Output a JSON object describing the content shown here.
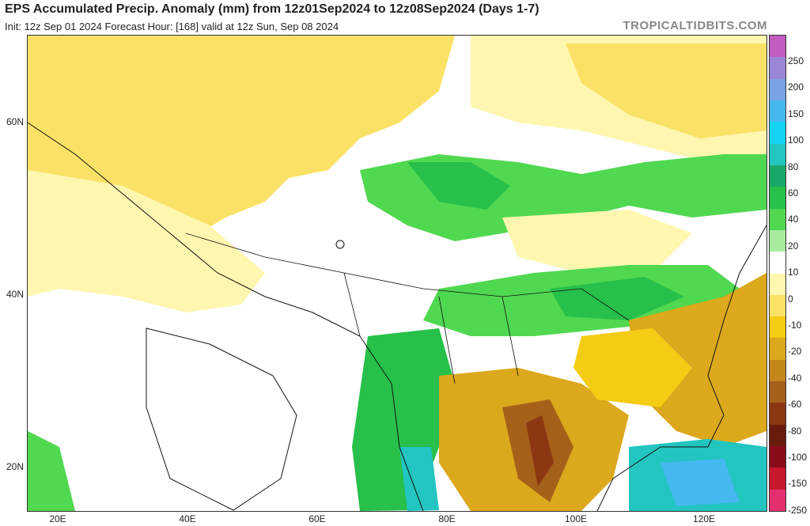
{
  "header": {
    "title": "EPS Accumulated Precip. Anomaly (mm) from 12z01Sep2024 to 12z08Sep2024 (Days 1-7)",
    "subtitle": "Init: 12z Sep 01 2024   Forecast Hour: [168]   valid at 12z Sun, Sep 08 2024",
    "brand": "TROPICALTIDBITS.COM"
  },
  "map": {
    "lat_labels": [
      "60N",
      "40N",
      "20N"
    ],
    "lon_labels": [
      "20E",
      "40E",
      "60E",
      "80E",
      "100E",
      "120E"
    ]
  },
  "colorbar": {
    "labels": [
      "250",
      "200",
      "150",
      "100",
      "80",
      "60",
      "40",
      "20",
      "10",
      "0",
      "-10",
      "-20",
      "-40",
      "-60",
      "-80",
      "-100",
      "-150",
      "-250"
    ],
    "colors": [
      "#c25bbf",
      "#9b86d6",
      "#7aa3e6",
      "#45b8f0",
      "#14d3f2",
      "#22c5c0",
      "#1aa86a",
      "#26c04a",
      "#50d850",
      "#a8eca0",
      "#ffffff",
      "#fff6b0",
      "#fbe267",
      "#f4cc14",
      "#dca81c",
      "#c4871c",
      "#a5601a",
      "#8c3612",
      "#6a1c0c",
      "#8a0c1a",
      "#c7182e",
      "#e43070"
    ]
  }
}
